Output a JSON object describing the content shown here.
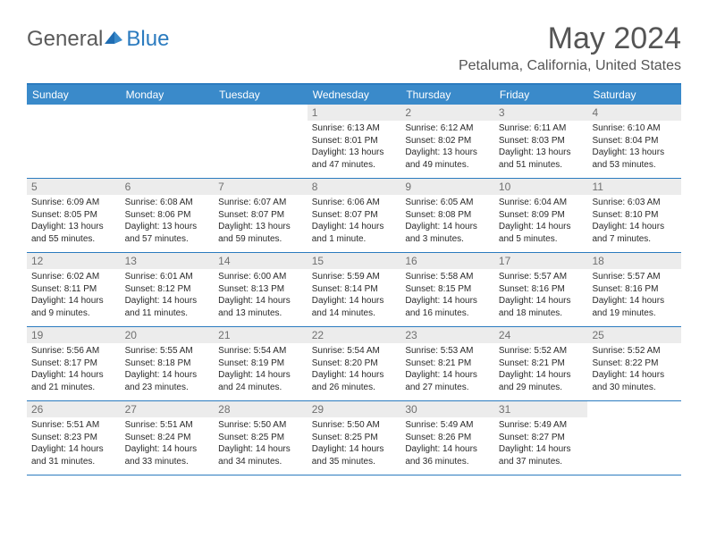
{
  "logo": {
    "general": "General",
    "blue": "Blue"
  },
  "title": "May 2024",
  "location": "Petaluma, California, United States",
  "colors": {
    "header_bg": "#3a8aca",
    "border": "#2b7bbf",
    "daynum_bg": "#ececec",
    "text_gray": "#555555",
    "cell_text": "#2a2a2a"
  },
  "day_headers": [
    "Sunday",
    "Monday",
    "Tuesday",
    "Wednesday",
    "Thursday",
    "Friday",
    "Saturday"
  ],
  "weeks": [
    [
      null,
      null,
      null,
      {
        "n": "1",
        "sr": "6:13 AM",
        "ss": "8:01 PM",
        "d1": "13 hours",
        "d2": "and 47 minutes."
      },
      {
        "n": "2",
        "sr": "6:12 AM",
        "ss": "8:02 PM",
        "d1": "13 hours",
        "d2": "and 49 minutes."
      },
      {
        "n": "3",
        "sr": "6:11 AM",
        "ss": "8:03 PM",
        "d1": "13 hours",
        "d2": "and 51 minutes."
      },
      {
        "n": "4",
        "sr": "6:10 AM",
        "ss": "8:04 PM",
        "d1": "13 hours",
        "d2": "and 53 minutes."
      }
    ],
    [
      {
        "n": "5",
        "sr": "6:09 AM",
        "ss": "8:05 PM",
        "d1": "13 hours",
        "d2": "and 55 minutes."
      },
      {
        "n": "6",
        "sr": "6:08 AM",
        "ss": "8:06 PM",
        "d1": "13 hours",
        "d2": "and 57 minutes."
      },
      {
        "n": "7",
        "sr": "6:07 AM",
        "ss": "8:07 PM",
        "d1": "13 hours",
        "d2": "and 59 minutes."
      },
      {
        "n": "8",
        "sr": "6:06 AM",
        "ss": "8:07 PM",
        "d1": "14 hours",
        "d2": "and 1 minute."
      },
      {
        "n": "9",
        "sr": "6:05 AM",
        "ss": "8:08 PM",
        "d1": "14 hours",
        "d2": "and 3 minutes."
      },
      {
        "n": "10",
        "sr": "6:04 AM",
        "ss": "8:09 PM",
        "d1": "14 hours",
        "d2": "and 5 minutes."
      },
      {
        "n": "11",
        "sr": "6:03 AM",
        "ss": "8:10 PM",
        "d1": "14 hours",
        "d2": "and 7 minutes."
      }
    ],
    [
      {
        "n": "12",
        "sr": "6:02 AM",
        "ss": "8:11 PM",
        "d1": "14 hours",
        "d2": "and 9 minutes."
      },
      {
        "n": "13",
        "sr": "6:01 AM",
        "ss": "8:12 PM",
        "d1": "14 hours",
        "d2": "and 11 minutes."
      },
      {
        "n": "14",
        "sr": "6:00 AM",
        "ss": "8:13 PM",
        "d1": "14 hours",
        "d2": "and 13 minutes."
      },
      {
        "n": "15",
        "sr": "5:59 AM",
        "ss": "8:14 PM",
        "d1": "14 hours",
        "d2": "and 14 minutes."
      },
      {
        "n": "16",
        "sr": "5:58 AM",
        "ss": "8:15 PM",
        "d1": "14 hours",
        "d2": "and 16 minutes."
      },
      {
        "n": "17",
        "sr": "5:57 AM",
        "ss": "8:16 PM",
        "d1": "14 hours",
        "d2": "and 18 minutes."
      },
      {
        "n": "18",
        "sr": "5:57 AM",
        "ss": "8:16 PM",
        "d1": "14 hours",
        "d2": "and 19 minutes."
      }
    ],
    [
      {
        "n": "19",
        "sr": "5:56 AM",
        "ss": "8:17 PM",
        "d1": "14 hours",
        "d2": "and 21 minutes."
      },
      {
        "n": "20",
        "sr": "5:55 AM",
        "ss": "8:18 PM",
        "d1": "14 hours",
        "d2": "and 23 minutes."
      },
      {
        "n": "21",
        "sr": "5:54 AM",
        "ss": "8:19 PM",
        "d1": "14 hours",
        "d2": "and 24 minutes."
      },
      {
        "n": "22",
        "sr": "5:54 AM",
        "ss": "8:20 PM",
        "d1": "14 hours",
        "d2": "and 26 minutes."
      },
      {
        "n": "23",
        "sr": "5:53 AM",
        "ss": "8:21 PM",
        "d1": "14 hours",
        "d2": "and 27 minutes."
      },
      {
        "n": "24",
        "sr": "5:52 AM",
        "ss": "8:21 PM",
        "d1": "14 hours",
        "d2": "and 29 minutes."
      },
      {
        "n": "25",
        "sr": "5:52 AM",
        "ss": "8:22 PM",
        "d1": "14 hours",
        "d2": "and 30 minutes."
      }
    ],
    [
      {
        "n": "26",
        "sr": "5:51 AM",
        "ss": "8:23 PM",
        "d1": "14 hours",
        "d2": "and 31 minutes."
      },
      {
        "n": "27",
        "sr": "5:51 AM",
        "ss": "8:24 PM",
        "d1": "14 hours",
        "d2": "and 33 minutes."
      },
      {
        "n": "28",
        "sr": "5:50 AM",
        "ss": "8:25 PM",
        "d1": "14 hours",
        "d2": "and 34 minutes."
      },
      {
        "n": "29",
        "sr": "5:50 AM",
        "ss": "8:25 PM",
        "d1": "14 hours",
        "d2": "and 35 minutes."
      },
      {
        "n": "30",
        "sr": "5:49 AM",
        "ss": "8:26 PM",
        "d1": "14 hours",
        "d2": "and 36 minutes."
      },
      {
        "n": "31",
        "sr": "5:49 AM",
        "ss": "8:27 PM",
        "d1": "14 hours",
        "d2": "and 37 minutes."
      },
      null
    ]
  ],
  "labels": {
    "sunrise": "Sunrise: ",
    "sunset": "Sunset: ",
    "daylight": "Daylight: "
  }
}
